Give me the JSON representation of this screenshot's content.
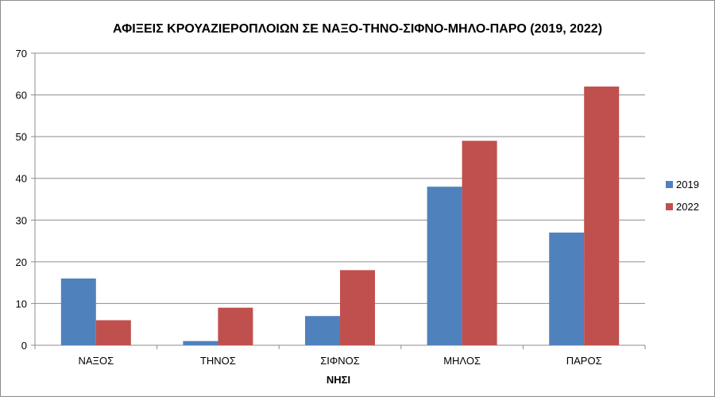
{
  "chart_data": {
    "type": "bar",
    "title": "ΑΦΙΞΕΙΣ ΚΡΟΥΑΖΙΕΡΟΠΛΟΙΩΝ ΣΕ ΝΑΞΟ-ΤΗΝΟ-ΣΙΦΝΟ-ΜΗΛΟ-ΠΑΡΟ (2019, 2022)",
    "xlabel": "ΝΗΣΙ",
    "ylabel": "",
    "categories": [
      "ΝΑΞΟΣ",
      "ΤΗΝΟΣ",
      "ΣΙΦΝΟΣ",
      "ΜΗΛΟΣ",
      "ΠΑΡΟΣ"
    ],
    "series": [
      {
        "name": "2019",
        "values": [
          16,
          1,
          7,
          38,
          27
        ],
        "color": "#4f81bd"
      },
      {
        "name": "2022",
        "values": [
          6,
          9,
          18,
          49,
          62
        ],
        "color": "#c0504d"
      }
    ],
    "ylim": [
      0,
      70
    ],
    "yticks": [
      0,
      10,
      20,
      30,
      40,
      50,
      60,
      70
    ],
    "grid": true,
    "legend_position": "right"
  }
}
